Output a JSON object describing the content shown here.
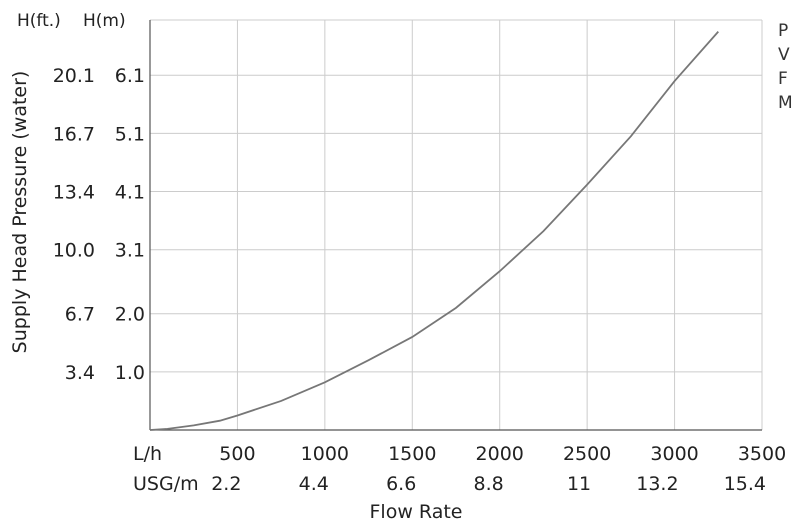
{
  "chart_data": {
    "type": "line",
    "xlabel": "Flow Rate",
    "ylabel": "Supply Head Pressure (water)",
    "xlim": [
      0,
      3500
    ],
    "ylim": [
      0,
      7.05
    ],
    "grid": true,
    "x_ticks": [
      500,
      1000,
      1500,
      2000,
      2500,
      3000,
      3500
    ],
    "x_ticks_usg": [
      "2.2",
      "4.4",
      "6.6",
      "8.8",
      "11",
      "13.2",
      "15.4"
    ],
    "x_row_label_lh": "L/h",
    "x_row_label_usg": "USG/m",
    "y_ticks_m": [
      1.0,
      2.0,
      3.1,
      4.1,
      5.1,
      6.1
    ],
    "y_ticks_m_labels": [
      "1.0",
      "2.0",
      "3.1",
      "4.1",
      "5.1",
      "6.1"
    ],
    "y_ticks_ft_labels": [
      "3.4",
      "6.7",
      "10.0",
      "13.4",
      "16.7",
      "20.1"
    ],
    "y_header_ft": "H(ft.)",
    "y_header_m": "H(m)",
    "side_text": [
      "P",
      "V",
      "F",
      "M"
    ],
    "series": [
      {
        "x": [
          0,
          100,
          250,
          400,
          500,
          750,
          1000,
          1250,
          1500,
          1750,
          2000,
          2250,
          2500,
          2750,
          3000,
          3250
        ],
        "y": [
          0.0,
          0.02,
          0.08,
          0.16,
          0.25,
          0.5,
          0.82,
          1.2,
          1.6,
          2.1,
          2.73,
          3.42,
          4.22,
          5.05,
          6.0,
          6.85
        ]
      }
    ],
    "colors": {
      "line": "#777777",
      "grid": "#cccccc",
      "axis": "#555555"
    }
  }
}
